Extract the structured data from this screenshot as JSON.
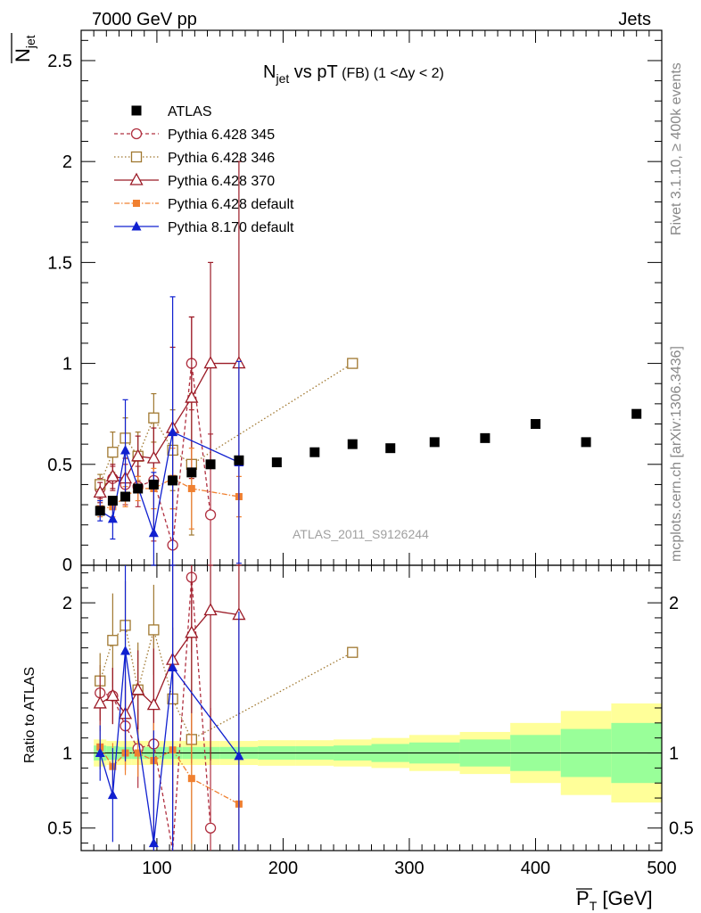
{
  "header": {
    "left": "7000 GeV pp",
    "right": "Jets"
  },
  "side_labels": {
    "rivet": "Rivet 3.1.10, ≥ 400k events",
    "mcplots": "mcplots.cern.ch [arXiv:1306.3436]"
  },
  "watermark": "ATLAS_2011_S9126244",
  "chart_data": {
    "type": "line",
    "title": "N_jet vs pT (FB) (1 <Δy < 2)",
    "ylabel": "N_jet",
    "xlabel": "P_T [GeV]",
    "ratio_ylabel": "Ratio to ATLAS",
    "xlim": [
      40,
      500
    ],
    "ylim": [
      0,
      2.65
    ],
    "ratio_ylim": [
      0.35,
      2.25
    ],
    "x_ticks": [
      100,
      200,
      300,
      400,
      500
    ],
    "y_ticks": [
      0.5,
      1,
      1.5,
      2,
      2.5
    ],
    "ratio_y_ticks": [
      0.5,
      1,
      2
    ],
    "legend_position": "top-left",
    "atlas": {
      "name": "ATLAS",
      "x": [
        55,
        65,
        75,
        85,
        97.5,
        112.5,
        127.5,
        142.5,
        165,
        195,
        225,
        255,
        285,
        320,
        360,
        400,
        440,
        480
      ],
      "y": [
        0.27,
        0.32,
        0.34,
        0.38,
        0.4,
        0.42,
        0.46,
        0.5,
        0.52,
        0.51,
        0.56,
        0.6,
        0.58,
        0.61,
        0.63,
        0.7,
        0.61,
        0.75
      ]
    },
    "ratio_band": {
      "x_edges": [
        50,
        60,
        70,
        80,
        90,
        105,
        120,
        135,
        150,
        180,
        210,
        240,
        270,
        300,
        340,
        380,
        420,
        460,
        500
      ],
      "stat_half": [
        0.05,
        0.045,
        0.04,
        0.04,
        0.04,
        0.04,
        0.04,
        0.04,
        0.04,
        0.045,
        0.045,
        0.05,
        0.06,
        0.07,
        0.09,
        0.12,
        0.16,
        0.2
      ],
      "total_half": [
        0.09,
        0.08,
        0.08,
        0.08,
        0.08,
        0.08,
        0.08,
        0.08,
        0.08,
        0.085,
        0.085,
        0.09,
        0.1,
        0.12,
        0.14,
        0.2,
        0.28,
        0.33
      ]
    },
    "series": [
      {
        "name": "Pythia 6.428 345",
        "color": "#b03040",
        "dash": "4,3",
        "marker": "circle-open",
        "x": [
          55,
          65,
          75,
          85,
          97.5,
          112.5,
          127.5,
          142.5
        ],
        "y": [
          0.38,
          0.43,
          0.4,
          0.39,
          0.42,
          0.1,
          1.0,
          0.25
        ],
        "err": [
          0.05,
          0.06,
          0.1,
          0.1,
          0.3,
          0.3,
          0.23,
          0.4
        ],
        "ratio": [
          1.4,
          1.38,
          1.18,
          1.03,
          1.06,
          0.24,
          2.17,
          0.5
        ]
      },
      {
        "name": "Pythia 6.428 346",
        "color": "#a07830",
        "dash": "1.5,2.5",
        "marker": "square-open",
        "x": [
          55,
          65,
          75,
          85,
          97.5,
          112.5,
          127.5,
          255
        ],
        "y": [
          0.4,
          0.56,
          0.63,
          0.54,
          0.73,
          0.57,
          0.5,
          1.0
        ],
        "err": [
          0.05,
          0.1,
          0.1,
          0.12,
          0.12,
          0.2,
          0.35,
          0.0
        ],
        "ratio": [
          1.48,
          1.75,
          1.85,
          1.42,
          1.82,
          1.36,
          1.09,
          1.67
        ]
      },
      {
        "name": "Pythia 6.428 370",
        "color": "#9b1a26",
        "dash": "",
        "marker": "triangle-open",
        "x": [
          55,
          65,
          75,
          85,
          97.5,
          112.5,
          127.5,
          142.5,
          165
        ],
        "y": [
          0.36,
          0.44,
          0.43,
          0.54,
          0.53,
          0.68,
          0.83,
          1.0,
          1.0
        ],
        "err": [
          0.05,
          0.06,
          0.1,
          0.1,
          0.15,
          0.4,
          0.4,
          0.5,
          1.0
        ],
        "ratio": [
          1.33,
          1.38,
          1.26,
          1.42,
          1.32,
          1.62,
          1.8,
          1.95,
          1.92
        ]
      },
      {
        "name": "Pythia 6.428 default",
        "color": "#f08030",
        "dash": "6,2,1.5,2",
        "marker": "square-filled",
        "x": [
          55,
          65,
          75,
          85,
          97.5,
          112.5,
          127.5,
          165
        ],
        "y": [
          0.28,
          0.29,
          0.34,
          0.38,
          0.38,
          0.43,
          0.38,
          0.34
        ],
        "err": [
          0.04,
          0.05,
          0.05,
          0.06,
          0.1,
          0.15,
          0.2,
          0.1
        ],
        "ratio": [
          1.04,
          0.91,
          1.0,
          1.0,
          0.95,
          1.02,
          0.83,
          0.66
        ]
      },
      {
        "name": "Pythia 8.170 default",
        "color": "#1020d0",
        "dash": "",
        "marker": "triangle-filled",
        "x": [
          55,
          65,
          75,
          97.5,
          112.5,
          165
        ],
        "y": [
          0.27,
          0.23,
          0.57,
          0.16,
          0.66,
          0.51
        ],
        "err": [
          0.05,
          0.1,
          0.25,
          0.3,
          0.67,
          0.5
        ],
        "ratio": [
          1.0,
          0.72,
          1.68,
          0.4,
          1.57,
          0.98
        ]
      }
    ]
  }
}
